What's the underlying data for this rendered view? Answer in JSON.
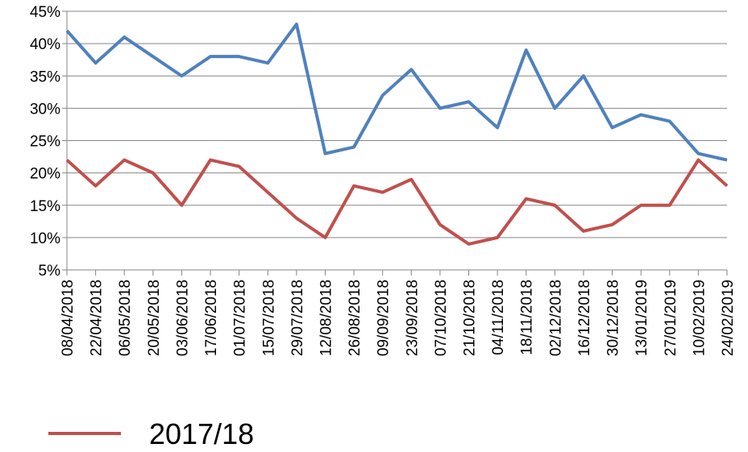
{
  "chart_data": {
    "type": "line",
    "categories": [
      "08/04/2018",
      "22/04/2018",
      "06/05/2018",
      "20/05/2018",
      "03/06/2018",
      "17/06/2018",
      "01/07/2018",
      "15/07/2018",
      "29/07/2018",
      "12/08/2018",
      "26/08/2018",
      "09/09/2018",
      "23/09/2018",
      "07/10/2018",
      "21/10/2018",
      "04/11/2018",
      "18/11/2018",
      "02/12/2018",
      "16/12/2018",
      "30/12/2018",
      "13/01/2019",
      "27/01/2019",
      "10/02/2019",
      "24/02/2019"
    ],
    "series": [
      {
        "color": "#4f81bd",
        "values": [
          42,
          37,
          41,
          38,
          35,
          38,
          38,
          37,
          43,
          23,
          24,
          32,
          36,
          30,
          31,
          27,
          39,
          30,
          35,
          27,
          29,
          28,
          23,
          22
        ]
      },
      {
        "name": "2017/18",
        "color": "#c0504d",
        "values": [
          22,
          18,
          22,
          20,
          15,
          22,
          21,
          17,
          13,
          10,
          18,
          17,
          19,
          12,
          9,
          10,
          16,
          15,
          11,
          12,
          15,
          15,
          22,
          18
        ]
      }
    ],
    "ylim": [
      5,
      45
    ],
    "yticks": [
      {
        "value": 5,
        "label": "5%"
      },
      {
        "value": 10,
        "label": "10%"
      },
      {
        "value": 15,
        "label": "15%"
      },
      {
        "value": 20,
        "label": "20%"
      },
      {
        "value": 25,
        "label": "25%"
      },
      {
        "value": 30,
        "label": "30%"
      },
      {
        "value": 35,
        "label": "35%"
      },
      {
        "value": 40,
        "label": "40%"
      },
      {
        "value": 45,
        "label": "45%"
      }
    ],
    "grid": true,
    "legend": "bottom-left"
  }
}
